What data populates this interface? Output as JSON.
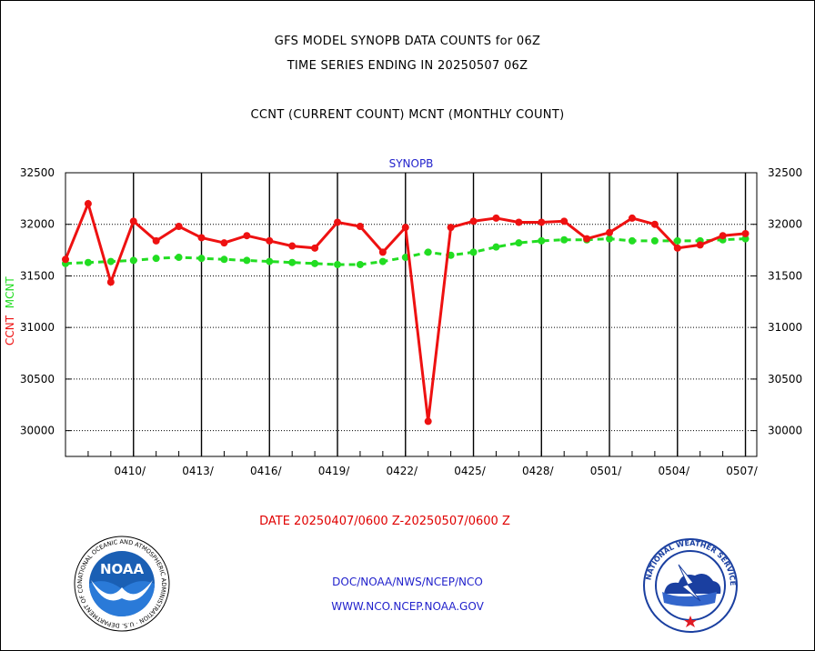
{
  "titles": {
    "line1": "GFS MODEL SYNOPB DATA COUNTS for 06Z",
    "line2": "TIME SERIES ENDING IN 20250507 06Z",
    "line3": "CCNT (CURRENT COUNT) MCNT (MONTHLY COUNT)"
  },
  "chart_data": {
    "type": "line",
    "title": "SYNOPB",
    "ylabel_ccnt": "CCNT",
    "ylabel_mcnt": "MCNT",
    "ylim": [
      29750,
      32500
    ],
    "yticks": [
      30000,
      30500,
      31000,
      31500,
      32000,
      32500
    ],
    "x_range_days": [
      0,
      30.5
    ],
    "xtick_labels": [
      "0410/",
      "0413/",
      "0416/",
      "0419/",
      "0422/",
      "0425/",
      "0428/",
      "0501/",
      "0504/",
      "0507/"
    ],
    "xlabel": "DATE 20250407/0600 Z-20250507/0600 Z",
    "grid": true,
    "series": [
      {
        "name": "CCNT",
        "color": "#ee1111",
        "values": [
          31660,
          32200,
          31440,
          32030,
          31840,
          31980,
          31870,
          31820,
          31890,
          31840,
          31790,
          31770,
          32020,
          31980,
          31730,
          31970,
          30090,
          31970,
          32030,
          32060,
          32020,
          32020,
          32030,
          31860,
          31920,
          32060,
          32000,
          31770,
          31800,
          31890,
          31910
        ]
      },
      {
        "name": "MCNT",
        "color": "#22dd22",
        "values": [
          31620,
          31630,
          31640,
          31650,
          31670,
          31680,
          31670,
          31660,
          31650,
          31640,
          31630,
          31620,
          31610,
          31610,
          31640,
          31680,
          31730,
          31700,
          31730,
          31780,
          31820,
          31840,
          31850,
          31850,
          31860,
          31840,
          31840,
          31840,
          31840,
          31850,
          31860
        ]
      }
    ]
  },
  "footer": {
    "agency": "DOC/NOAA/NWS/NCEP/NCO",
    "website": "WWW.NCO.NCEP.NOAA.GOV"
  },
  "logos": {
    "noaa_text": "NOAA",
    "noaa_ring_text": "NATIONAL OCEANIC AND ATMOSPHERIC ADMINISTRATION · U.S. DEPARTMENT OF COMMERCE ·",
    "nws_ring_text": "NATIONAL WEATHER SERVICE"
  }
}
